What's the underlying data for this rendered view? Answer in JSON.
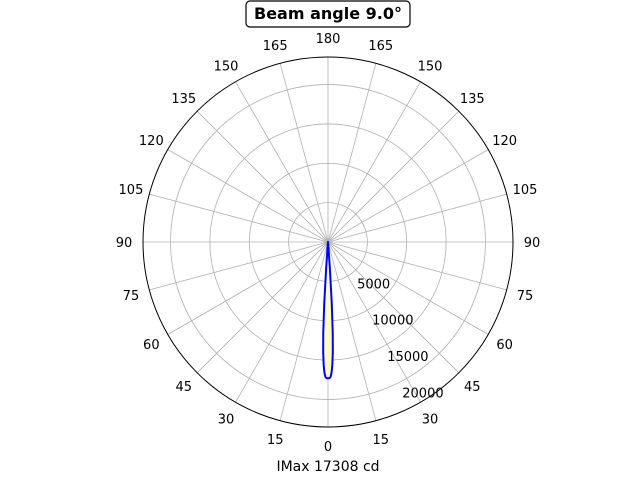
{
  "chart_data": {
    "type": "polar-line",
    "title": "Beam angle 9.0°",
    "xlabel": "IMax 17308 cd",
    "angle_tick_labels": [
      "0",
      "15",
      "30",
      "45",
      "60",
      "75",
      "90",
      "105",
      "120",
      "135",
      "150",
      "165",
      "180",
      "165",
      "150",
      "135",
      "120",
      "105",
      "90",
      "75",
      "60",
      "45",
      "30",
      "15"
    ],
    "radial_ticks": [
      5000,
      10000,
      15000,
      20000
    ],
    "radial_tick_labels": [
      "5000",
      "10000",
      "15000",
      "20000"
    ],
    "rmax": 23500,
    "grid": true,
    "series": [
      {
        "color": "#0000ff",
        "fill_color": "#ffffbf",
        "angle_deg": [
          -4.5,
          -4,
          -3.5,
          -3,
          -2.5,
          -2,
          -1.5,
          -1,
          -0.5,
          0,
          0.5,
          1,
          1.5,
          2,
          2.5,
          3,
          3.5,
          4,
          4.5
        ],
        "intensity_cd": [
          1000,
          3500,
          7800,
          11500,
          14000,
          15700,
          16700,
          17200,
          17308,
          17308,
          17308,
          17200,
          16700,
          15700,
          14000,
          11500,
          7800,
          3500,
          1000
        ]
      }
    ]
  }
}
